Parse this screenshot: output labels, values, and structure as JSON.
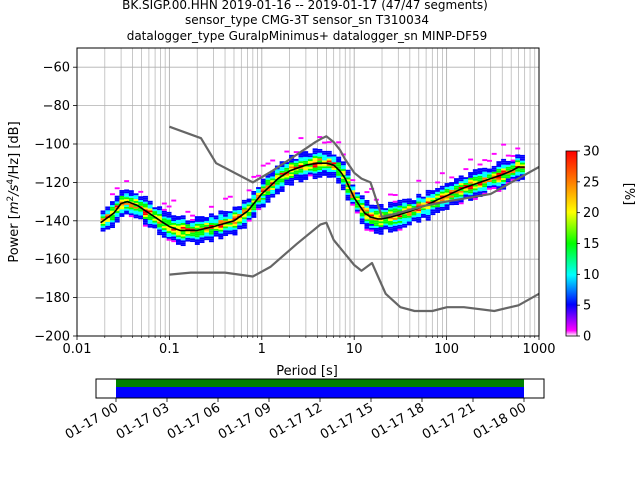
{
  "chart_data": {
    "type": "heatmap",
    "title_lines": [
      "BK.SIGP.00.HHN   2019-01-16 -- 2019-01-17  (47/47 segments)",
      "sensor_type CMG-3T sensor_sn T310034",
      "datalogger_type GuralpMinimus+ datalogger_sn MINP-DF59"
    ],
    "xlabel": "Period [s]",
    "ylabel_parts": {
      "prefix": "Power [",
      "m": "m",
      "two": "2",
      "mid": "/s",
      "four": "4",
      "suffix": "/Hz] [dB]"
    },
    "x_scale": "log",
    "xlim": [
      0.01,
      1000
    ],
    "ylim": [
      -200,
      -50
    ],
    "x_ticks": [
      0.01,
      0.1,
      1,
      10,
      100,
      1000
    ],
    "x_tick_labels": [
      "0.01",
      "0.1",
      "1",
      "10",
      "100",
      "1000"
    ],
    "y_ticks": [
      -200,
      -180,
      -160,
      -140,
      -120,
      -100,
      -80,
      -60
    ],
    "y_tick_labels": [
      "−200",
      "−180",
      "−160",
      "−140",
      "−120",
      "−100",
      "−80",
      "−60"
    ],
    "grid": true,
    "colorbar": {
      "label": "[%]",
      "range": [
        0,
        30
      ],
      "ticks": [
        0,
        5,
        10,
        15,
        20,
        25,
        30
      ],
      "tick_labels": [
        "0",
        "5",
        "10",
        "15",
        "20",
        "25",
        "30"
      ],
      "colors": [
        "#ffffff",
        "#ff00ff",
        "#0000ff",
        "#00ffff",
        "#00ff00",
        "#ffff00",
        "#ff8000",
        "#ff0000"
      ]
    },
    "series": [
      {
        "role": "median",
        "color": "#000000",
        "x": [
          0.018,
          0.025,
          0.03,
          0.035,
          0.045,
          0.06,
          0.08,
          0.1,
          0.13,
          0.2,
          0.3,
          0.5,
          0.7,
          1,
          1.5,
          2,
          3,
          4,
          5,
          6,
          7,
          8,
          10,
          13,
          15,
          18,
          20,
          25,
          30,
          40,
          60,
          80,
          100,
          150,
          200,
          300,
          400,
          500,
          600,
          700
        ],
        "y": [
          -141,
          -136,
          -131,
          -130,
          -132,
          -136,
          -140,
          -143,
          -145,
          -145,
          -143,
          -140,
          -135,
          -126,
          -118,
          -114,
          -111,
          -110,
          -110,
          -111,
          -114,
          -118,
          -128,
          -136,
          -138,
          -139,
          -139,
          -138,
          -137,
          -135,
          -132,
          -129,
          -127,
          -123,
          -121,
          -118,
          -116,
          -114,
          -112,
          -112
        ]
      },
      {
        "role": "noise-model-high",
        "color": "#666666",
        "x": [
          0.1,
          0.22,
          0.32,
          0.8,
          1.3,
          2,
          3.8,
          4.5,
          5,
          6,
          7,
          8,
          10,
          12,
          15,
          20,
          30,
          60,
          100,
          300,
          1000
        ],
        "y": [
          -91,
          -97,
          -110,
          -120,
          -114,
          -108,
          -99,
          -97,
          -96,
          -99,
          -103,
          -108,
          -115,
          -118,
          -120,
          -138,
          -136,
          -132,
          -130,
          -126,
          -112
        ]
      },
      {
        "role": "noise-model-low",
        "color": "#666666",
        "x": [
          0.1,
          0.17,
          0.4,
          0.8,
          1.24,
          2.4,
          4.3,
          5,
          6,
          10,
          12,
          15.6,
          21.9,
          31.6,
          45,
          70,
          101,
          154,
          328,
          600,
          1000
        ],
        "y": [
          -168,
          -167,
          -167,
          -169,
          -164,
          -152,
          -142,
          -141,
          -150,
          -163,
          -166,
          -162,
          -178,
          -185,
          -187,
          -187,
          -185,
          -185,
          -187,
          -184,
          -178
        ]
      }
    ],
    "time_axis": {
      "tick_labels": [
        "01-17 00",
        "01-17 03",
        "01-17 06",
        "01-17 09",
        "01-17 12",
        "01-17 15",
        "01-17 18",
        "01-17 21",
        "01-18 00"
      ],
      "coverage_start": "01-17 00",
      "coverage_end": "01-18 00",
      "bar_colors": [
        "#008000",
        "#0000ff"
      ]
    }
  }
}
